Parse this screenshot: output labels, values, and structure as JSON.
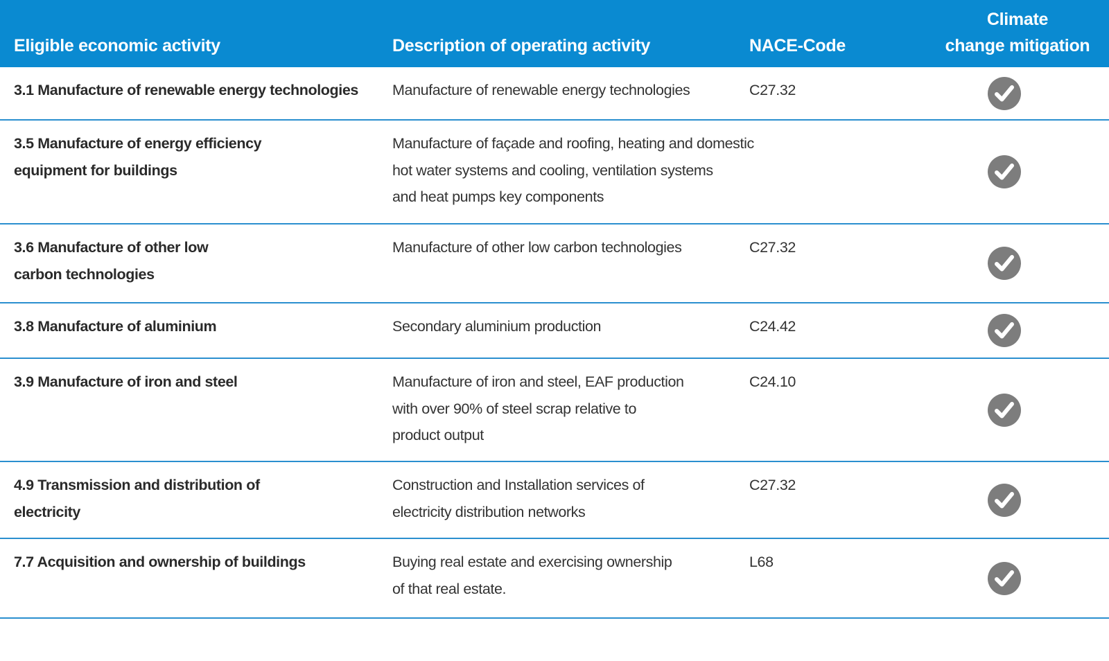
{
  "header": {
    "col1": "Eligible economic activity",
    "col2": "Description of operating activity",
    "col3": "NACE-Code",
    "col4_line1": "Climate",
    "col4_line2": "change mitigation"
  },
  "rows": [
    {
      "activity": [
        "3.1 Manufacture of renewable energy technologies"
      ],
      "description": [
        "Manufacture of renewable energy technologies"
      ],
      "nace": "C27.32",
      "mitigation_icon": "check-circle-icon"
    },
    {
      "activity": [
        "3.5 Manufacture of energy efficiency",
        "equipment for buildings"
      ],
      "description": [
        "Manufacture of façade and roofing, heating and domestic",
        "hot water systems and cooling, ventilation systems",
        "and heat pumps key components"
      ],
      "nace": "",
      "mitigation_icon": "check-circle-icon"
    },
    {
      "activity": [
        "3.6 Manufacture of other low",
        "carbon technologies"
      ],
      "description": [
        "Manufacture of other low carbon technologies"
      ],
      "nace": "C27.32",
      "mitigation_icon": "check-circle-icon"
    },
    {
      "activity": [
        "3.8 Manufacture of aluminium"
      ],
      "description": [
        "Secondary aluminium production"
      ],
      "nace": "C24.42",
      "mitigation_icon": "check-circle-icon"
    },
    {
      "activity": [
        "3.9 Manufacture of iron and steel"
      ],
      "description": [
        "Manufacture of iron and steel, EAF production",
        "with over 90% of steel scrap relative to",
        "product output"
      ],
      "nace": "C24.10",
      "mitigation_icon": "check-circle-icon"
    },
    {
      "activity": [
        "4.9 Transmission and distribution of",
        "electricity"
      ],
      "description": [
        "Construction and Installation services of",
        "electricity distribution networks"
      ],
      "nace": "C27.32",
      "mitigation_icon": "check-circle-icon"
    },
    {
      "activity": [
        "7.7 Acquisition and ownership of buildings"
      ],
      "description": [
        "Buying real estate and exercising ownership",
        "of that real estate."
      ],
      "nace": "L68",
      "mitigation_icon": "check-circle-icon"
    }
  ],
  "colors": {
    "header_bg": "#0a8ad1",
    "row_divider": "#2a8fcf",
    "check_bg": "#7d7d7d"
  }
}
